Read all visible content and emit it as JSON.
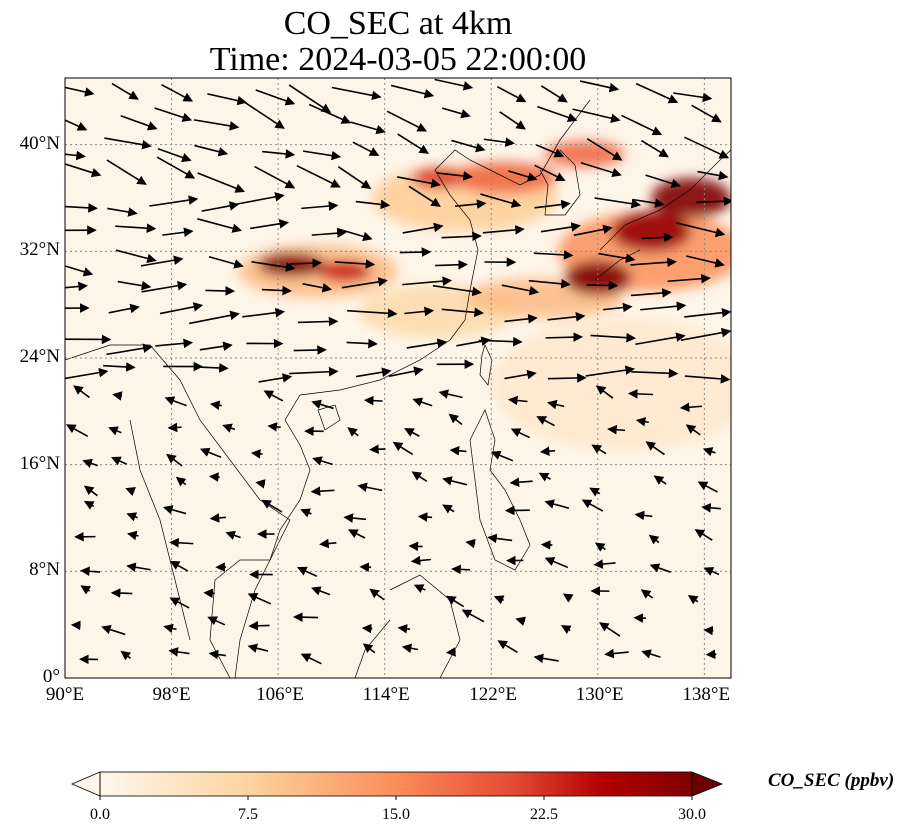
{
  "title_line1": "CO_SEC at 4km",
  "title_line2": "Time: 2024-03-05 22:00:00",
  "chart_data": {
    "type": "heatmap",
    "variable": "CO_SEC",
    "units": "ppbv",
    "lon_range": [
      90,
      140
    ],
    "lat_range": [
      0,
      45
    ],
    "x_ticks": [
      {
        "v": 90,
        "label": "90°E"
      },
      {
        "v": 98,
        "label": "98°E"
      },
      {
        "v": 106,
        "label": "106°E"
      },
      {
        "v": 114,
        "label": "114°E"
      },
      {
        "v": 122,
        "label": "122°E"
      },
      {
        "v": 130,
        "label": "130°E"
      },
      {
        "v": 138,
        "label": "138°E"
      }
    ],
    "y_ticks": [
      {
        "v": 0,
        "label": "0°"
      },
      {
        "v": 8,
        "label": "8°N"
      },
      {
        "v": 16,
        "label": "16°N"
      },
      {
        "v": 24,
        "label": "24°N"
      },
      {
        "v": 32,
        "label": "32°N"
      },
      {
        "v": 40,
        "label": "40°N"
      }
    ],
    "grid": true,
    "colorbar": {
      "label": "CO_SEC (ppbv)",
      "min": 0,
      "max": 30,
      "ticks": [
        "0.0",
        "7.5",
        "15.0",
        "22.5",
        "30.0"
      ],
      "extend": "both",
      "colormap": [
        "#fff7ec",
        "#fdd49e",
        "#fc8d59",
        "#d7301f",
        "#b30000",
        "#7f0000"
      ]
    },
    "plumes": [
      {
        "lon": 107,
        "lat": 31.0,
        "rx": 2.5,
        "ry": 0.9,
        "v": 30
      },
      {
        "lon": 111,
        "lat": 30.5,
        "rx": 2.0,
        "ry": 0.8,
        "v": 24
      },
      {
        "lon": 109,
        "lat": 30.5,
        "rx": 6,
        "ry": 2,
        "v": 10
      },
      {
        "lon": 118,
        "lat": 37.5,
        "rx": 2,
        "ry": 0.8,
        "v": 22
      },
      {
        "lon": 123,
        "lat": 37.5,
        "rx": 4,
        "ry": 1.2,
        "v": 18
      },
      {
        "lon": 129,
        "lat": 39.3,
        "rx": 3,
        "ry": 1,
        "v": 18
      },
      {
        "lon": 120,
        "lat": 36,
        "rx": 7,
        "ry": 2.5,
        "v": 8
      },
      {
        "lon": 130,
        "lat": 30,
        "rx": 2.5,
        "ry": 1.3,
        "v": 30
      },
      {
        "lon": 134,
        "lat": 33.5,
        "rx": 3,
        "ry": 1.5,
        "v": 28
      },
      {
        "lon": 137,
        "lat": 36,
        "rx": 3,
        "ry": 1.5,
        "v": 30
      },
      {
        "lon": 134,
        "lat": 32,
        "rx": 7,
        "ry": 3,
        "v": 14
      },
      {
        "lon": 126,
        "lat": 28.5,
        "rx": 6,
        "ry": 1.5,
        "v": 10
      },
      {
        "lon": 118,
        "lat": 27.5,
        "rx": 6,
        "ry": 2,
        "v": 6
      },
      {
        "lon": 132,
        "lat": 22,
        "rx": 10,
        "ry": 5,
        "v": 3
      }
    ]
  }
}
